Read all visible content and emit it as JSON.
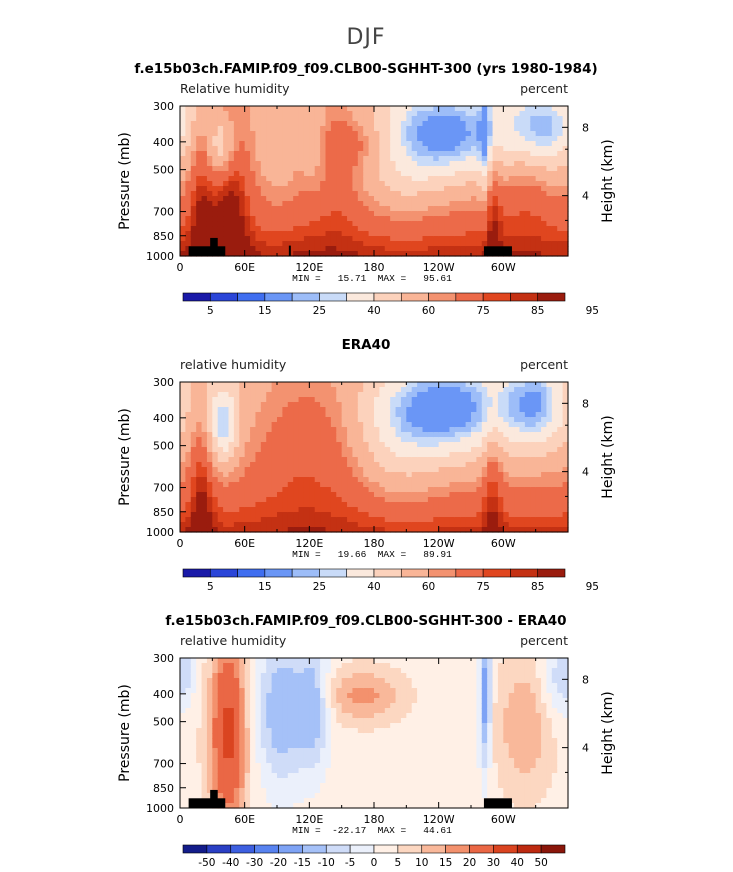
{
  "figure_title": "DJF",
  "colors": {
    "black": "#000000",
    "seq_palette": [
      "#1a1aa8",
      "#2a45d8",
      "#3f6ef0",
      "#6a96f6",
      "#9dbdf8",
      "#c9dbf8",
      "#fbe9dd",
      "#fcd2bc",
      "#f9b597",
      "#f39270",
      "#ec6a49",
      "#e0461f",
      "#c43113",
      "#9a1c0e"
    ],
    "diff_palette": [
      "#131c8a",
      "#2a3fc4",
      "#3d5fe0",
      "#5883f0",
      "#7ea3f5",
      "#a5c1f8",
      "#cfdcf8",
      "#ebf0fb",
      "#fff0e6",
      "#fcd7c1",
      "#f9b89a",
      "#f3916d",
      "#ea6745",
      "#da4420",
      "#bd2a10",
      "#8a160a"
    ]
  },
  "chart_data": [
    {
      "type": "heatmap",
      "title": "f.e15b03ch.FAMIP.f09_f09.CLB00-SGHHT-300 (yrs 1980-1984)",
      "left_label": "Relative humidity",
      "right_label": "percent",
      "xlabel": "",
      "ylabel": "Pressure (mb)",
      "y2label": "Height (km)",
      "x_ticks": [
        "0",
        "60E",
        "120E",
        "180",
        "120W",
        "60W"
      ],
      "x_range": [
        0,
        360
      ],
      "y_ticks": [
        "300",
        "400",
        "500",
        "700",
        "850",
        "1000"
      ],
      "y_range": [
        300,
        1000
      ],
      "y_scale": "log",
      "y2_ticks": [
        "8",
        "4"
      ],
      "min_max": "MIN =   15.71  MAX =   95.61",
      "colorbar_labels": [
        "5",
        "15",
        "25",
        "40",
        "60",
        "75",
        "85",
        "95"
      ],
      "field": "model"
    },
    {
      "type": "heatmap",
      "title": "ERA40",
      "left_label": "relative humidity",
      "right_label": "percent",
      "xlabel": "",
      "ylabel": "Pressure (mb)",
      "y2label": "Height (km)",
      "x_ticks": [
        "0",
        "60E",
        "120E",
        "180",
        "120W",
        "60W"
      ],
      "x_range": [
        0,
        360
      ],
      "y_ticks": [
        "300",
        "400",
        "500",
        "700",
        "850",
        "1000"
      ],
      "y_range": [
        300,
        1000
      ],
      "y_scale": "log",
      "y2_ticks": [
        "8",
        "4"
      ],
      "min_max": "MIN =   19.66  MAX =   89.91",
      "colorbar_labels": [
        "5",
        "15",
        "25",
        "40",
        "60",
        "75",
        "85",
        "95"
      ],
      "field": "obs"
    },
    {
      "type": "heatmap",
      "title": "f.e15b03ch.FAMIP.f09_f09.CLB00-SGHHT-300 - ERA40",
      "left_label": "relative humidity",
      "right_label": "percent",
      "xlabel": "",
      "ylabel": "Pressure (mb)",
      "y2label": "Height (km)",
      "x_ticks": [
        "0",
        "60E",
        "120E",
        "180",
        "120W",
        "60W"
      ],
      "x_range": [
        0,
        360
      ],
      "y_ticks": [
        "300",
        "400",
        "500",
        "700",
        "850",
        "1000"
      ],
      "y_range": [
        300,
        1000
      ],
      "y_scale": "log",
      "y2_ticks": [
        "8",
        "4"
      ],
      "min_max": "MIN =  -22.17  MAX =   44.61",
      "colorbar_labels": [
        "-50",
        "-40",
        "-30",
        "-20",
        "-15",
        "-10",
        "-5",
        "0",
        "5",
        "10",
        "15",
        "20",
        "30",
        "40",
        "50"
      ],
      "field": "diff"
    }
  ]
}
